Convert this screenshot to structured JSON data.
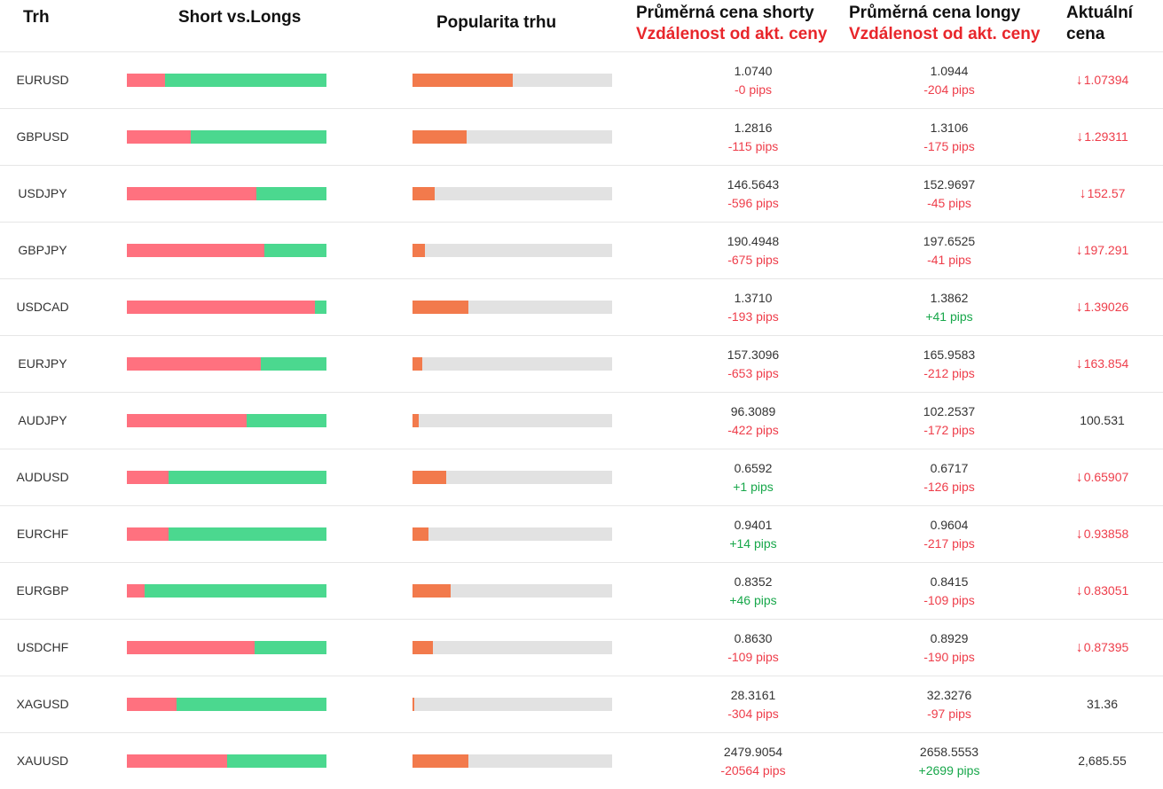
{
  "header": {
    "market": "Trh",
    "short_vs_long": "Short vs.Longs",
    "popularity": "Popularita trhu",
    "avg_short_line1": "Průměrná cena shorty",
    "avg_short_line2": "Vzdálenost od akt. ceny",
    "avg_long_line1": "Průměrná cena longy",
    "avg_long_line2": "Vzdálenost od akt. ceny",
    "current_line1": "Aktuální",
    "current_line2": "cena"
  },
  "colors": {
    "short": "#ff717f",
    "long": "#4bd88f",
    "popularity": "#f27a4c",
    "negative": "#ee3d4a",
    "positive": "#17a74a"
  },
  "rows": [
    {
      "symbol": "EURUSD",
      "short_pct": 19,
      "popularity_pct": 50,
      "avg_short": "1.0740",
      "short_pips": "-0 pips",
      "short_pips_sign": "neg",
      "avg_long": "1.0944",
      "long_pips": "-204 pips",
      "long_pips_sign": "neg",
      "current": "1.07394",
      "direction": "down"
    },
    {
      "symbol": "GBPUSD",
      "short_pct": 32,
      "popularity_pct": 27,
      "avg_short": "1.2816",
      "short_pips": "-115 pips",
      "short_pips_sign": "neg",
      "avg_long": "1.3106",
      "long_pips": "-175 pips",
      "long_pips_sign": "neg",
      "current": "1.29311",
      "direction": "down"
    },
    {
      "symbol": "USDJPY",
      "short_pct": 65,
      "popularity_pct": 11,
      "avg_short": "146.5643",
      "short_pips": "-596 pips",
      "short_pips_sign": "neg",
      "avg_long": "152.9697",
      "long_pips": "-45 pips",
      "long_pips_sign": "neg",
      "current": "152.57",
      "direction": "down"
    },
    {
      "symbol": "GBPJPY",
      "short_pct": 69,
      "popularity_pct": 6,
      "avg_short": "190.4948",
      "short_pips": "-675 pips",
      "short_pips_sign": "neg",
      "avg_long": "197.6525",
      "long_pips": "-41 pips",
      "long_pips_sign": "neg",
      "current": "197.291",
      "direction": "down"
    },
    {
      "symbol": "USDCAD",
      "short_pct": 94,
      "popularity_pct": 28,
      "avg_short": "1.3710",
      "short_pips": "-193 pips",
      "short_pips_sign": "neg",
      "avg_long": "1.3862",
      "long_pips": "+41 pips",
      "long_pips_sign": "pos",
      "current": "1.39026",
      "direction": "down"
    },
    {
      "symbol": "EURJPY",
      "short_pct": 67,
      "popularity_pct": 5,
      "avg_short": "157.3096",
      "short_pips": "-653 pips",
      "short_pips_sign": "neg",
      "avg_long": "165.9583",
      "long_pips": "-212 pips",
      "long_pips_sign": "neg",
      "current": "163.854",
      "direction": "down"
    },
    {
      "symbol": "AUDJPY",
      "short_pct": 60,
      "popularity_pct": 3,
      "avg_short": "96.3089",
      "short_pips": "-422 pips",
      "short_pips_sign": "neg",
      "avg_long": "102.2537",
      "long_pips": "-172 pips",
      "long_pips_sign": "neg",
      "current": "100.531",
      "direction": "none"
    },
    {
      "symbol": "AUDUSD",
      "short_pct": 21,
      "popularity_pct": 17,
      "avg_short": "0.6592",
      "short_pips": "+1 pips",
      "short_pips_sign": "pos",
      "avg_long": "0.6717",
      "long_pips": "-126 pips",
      "long_pips_sign": "neg",
      "current": "0.65907",
      "direction": "down"
    },
    {
      "symbol": "EURCHF",
      "short_pct": 21,
      "popularity_pct": 8,
      "avg_short": "0.9401",
      "short_pips": "+14 pips",
      "short_pips_sign": "pos",
      "avg_long": "0.9604",
      "long_pips": "-217 pips",
      "long_pips_sign": "neg",
      "current": "0.93858",
      "direction": "down"
    },
    {
      "symbol": "EURGBP",
      "short_pct": 9,
      "popularity_pct": 19,
      "avg_short": "0.8352",
      "short_pips": "+46 pips",
      "short_pips_sign": "pos",
      "avg_long": "0.8415",
      "long_pips": "-109 pips",
      "long_pips_sign": "neg",
      "current": "0.83051",
      "direction": "down"
    },
    {
      "symbol": "USDCHF",
      "short_pct": 64,
      "popularity_pct": 10,
      "avg_short": "0.8630",
      "short_pips": "-109 pips",
      "short_pips_sign": "neg",
      "avg_long": "0.8929",
      "long_pips": "-190 pips",
      "long_pips_sign": "neg",
      "current": "0.87395",
      "direction": "down"
    },
    {
      "symbol": "XAGUSD",
      "short_pct": 25,
      "popularity_pct": 1,
      "avg_short": "28.3161",
      "short_pips": "-304 pips",
      "short_pips_sign": "neg",
      "avg_long": "32.3276",
      "long_pips": "-97 pips",
      "long_pips_sign": "neg",
      "current": "31.36",
      "direction": "none"
    },
    {
      "symbol": "XAUUSD",
      "short_pct": 50,
      "popularity_pct": 28,
      "avg_short": "2479.9054",
      "short_pips": "-20564 pips",
      "short_pips_sign": "neg",
      "avg_long": "2658.5553",
      "long_pips": "+2699 pips",
      "long_pips_sign": "pos",
      "current": "2,685.55",
      "direction": "none"
    }
  ],
  "icons": {
    "down_arrow": "arrow-down-icon"
  }
}
